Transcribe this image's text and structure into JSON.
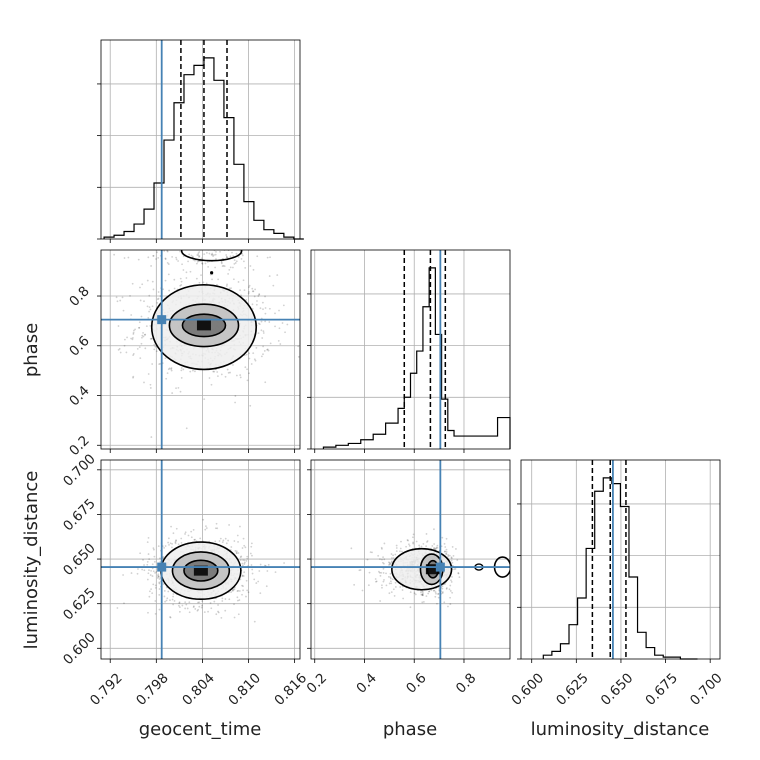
{
  "chart_data": {
    "type": "corner",
    "parameters": [
      "geocent_time",
      "phase",
      "luminosity_distance"
    ],
    "axis_labels": {
      "geocent_time": "geocent_time",
      "phase": "phase",
      "luminosity_distance": "luminosity_distance"
    },
    "ranges": {
      "geocent_time": [
        0.7908,
        0.8167
      ],
      "phase": [
        0.185,
        0.985
      ],
      "luminosity_distance": [
        0.594,
        0.7055
      ]
    },
    "ticks": {
      "geocent_time": [
        0.792,
        0.798,
        0.804,
        0.81,
        0.816
      ],
      "phase": [
        0.2,
        0.4,
        0.6,
        0.8
      ],
      "luminosity_distance": [
        0.6,
        0.625,
        0.65,
        0.675,
        0.7
      ]
    },
    "tick_labels": {
      "geocent_time": [
        "0.792",
        "0.798",
        "0.804",
        "0.810",
        "0.816"
      ],
      "phase": [
        "0.2",
        "0.4",
        "0.6",
        "0.8"
      ],
      "luminosity_distance": [
        "0.600",
        "0.625",
        "0.650",
        "0.675",
        "0.700"
      ]
    },
    "truths": {
      "geocent_time": 0.7987,
      "phase": 0.705,
      "luminosity_distance": 0.6455
    },
    "quantiles": {
      "geocent_time": [
        0.8012,
        0.8042,
        0.8072
      ],
      "phase": [
        0.56,
        0.665,
        0.725
      ],
      "luminosity_distance": [
        0.634,
        0.644,
        0.6528
      ]
    },
    "histograms": {
      "geocent_time": {
        "bin_edges": [
          0.7912,
          0.7925,
          0.7938,
          0.7951,
          0.7964,
          0.7977,
          0.799,
          0.8003,
          0.8016,
          0.8029,
          0.8042,
          0.8055,
          0.8068,
          0.8081,
          0.8094,
          0.8107,
          0.812,
          0.8133,
          0.8146,
          0.8159,
          0.8172
        ],
        "counts": [
          1,
          2,
          4,
          8,
          16,
          30,
          53,
          73,
          88,
          93,
          97,
          85,
          65,
          40,
          20,
          10,
          5,
          3,
          1,
          0
        ]
      },
      "phase": {
        "bin_edges": [
          0.235,
          0.285,
          0.335,
          0.385,
          0.435,
          0.485,
          0.535,
          0.56,
          0.585,
          0.61,
          0.635,
          0.66,
          0.685,
          0.71,
          0.735,
          0.76,
          0.785,
          0.835,
          0.885,
          0.935,
          0.985
        ],
        "counts": [
          1,
          2,
          3,
          5,
          8,
          14,
          22,
          28,
          41,
          53,
          77,
          98,
          62,
          27,
          10,
          7,
          7,
          7,
          7,
          17
        ]
      },
      "luminosity_distance": {
        "bin_edges": [
          0.6065,
          0.6113,
          0.6161,
          0.6209,
          0.6257,
          0.6305,
          0.6353,
          0.6401,
          0.6449,
          0.6497,
          0.6545,
          0.6593,
          0.6641,
          0.6689,
          0.6737,
          0.6785,
          0.6833,
          0.6881,
          0.6929
        ],
        "counts": [
          2,
          4,
          8,
          18,
          32,
          58,
          88,
          95,
          92,
          80,
          43,
          14,
          6,
          2,
          1,
          1,
          0,
          0
        ]
      }
    },
    "contours": {
      "phase_vs_geocent_time": {
        "x": "geocent_time",
        "y": "phase",
        "levels": [
          {
            "center": [
              0.8042,
              0.675
            ],
            "half_width": [
              0.0068,
              0.17
            ]
          },
          {
            "center": [
              0.8042,
              0.682
            ],
            "half_width": [
              0.0045,
              0.085
            ]
          },
          {
            "center": [
              0.8042,
              0.682
            ],
            "half_width": [
              0.0028,
              0.045
            ]
          }
        ],
        "extra_mode": {
          "x": 0.8052,
          "y": 0.958
        }
      },
      "luminosity_distance_vs_geocent_time": {
        "x": "geocent_time",
        "y": "luminosity_distance",
        "levels": [
          {
            "center": [
              0.8038,
              0.6435
            ],
            "half_width": [
              0.0052,
              0.016
            ]
          },
          {
            "center": [
              0.8038,
              0.6435
            ],
            "half_width": [
              0.0037,
              0.0105
            ]
          },
          {
            "center": [
              0.8038,
              0.6435
            ],
            "half_width": [
              0.0022,
              0.0058
            ]
          }
        ]
      },
      "luminosity_distance_vs_phase": {
        "x": "phase",
        "y": "luminosity_distance",
        "levels": [
          {
            "center": [
              0.63,
              0.6443
            ],
            "half_width": [
              0.12,
              0.0115
            ]
          },
          {
            "center": [
              0.67,
              0.6443
            ],
            "half_width": [
              0.045,
              0.0085
            ]
          },
          {
            "center": [
              0.675,
              0.6443
            ],
            "half_width": [
              0.022,
              0.0048
            ]
          }
        ],
        "extra_mode": {
          "x": 0.955,
          "y": 0.6455
        }
      }
    },
    "colors": {
      "truth": "#4682b4",
      "hist": "#000000",
      "grid": "#b0b0b0",
      "density_dark": "#111111"
    }
  }
}
